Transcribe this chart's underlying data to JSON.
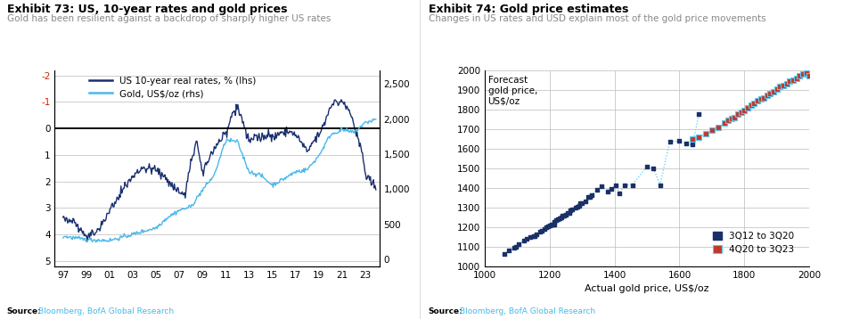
{
  "chart1": {
    "title": "Exhibit 73: US, 10-year rates and gold prices",
    "subtitle": "Gold has been resilient against a backdrop of sharply higher US rates",
    "legend1": "US 10-year real rates, % (lhs)",
    "legend2": "Gold, US$/oz (rhs)",
    "color_rates": "#1a2f6e",
    "color_gold": "#4ab8e8",
    "lhs_ticks": [
      "-2",
      "-1",
      "0",
      "1",
      "2",
      "3",
      "4",
      "5"
    ],
    "lhs_vals": [
      -2,
      -1,
      0,
      1,
      2,
      3,
      4,
      5
    ],
    "rhs_ticks": [
      "2,500",
      "2,000",
      "1,500",
      "1,000",
      "500",
      "0"
    ],
    "rhs_vals": [
      2500,
      2000,
      1500,
      1000,
      500,
      0
    ],
    "x_labels": [
      "97",
      "99",
      "01",
      "03",
      "05",
      "07",
      "09",
      "11",
      "13",
      "15",
      "17",
      "19",
      "21",
      "23"
    ],
    "source_bold": "Source:",
    "source_rest": " Bloomberg, BofA Global Research",
    "source_color": "#4ab8e8"
  },
  "chart2": {
    "title": "Exhibit 74: Gold price estimates",
    "subtitle": "Changes in US rates and USD explain most of the gold price movements",
    "xlabel": "Actual gold price, US$/oz",
    "ylabel_text": "Forecast\ngold price,\nUS$/oz",
    "color_series1": "#1a3068",
    "color_series2_marker": "#c0392b",
    "color_trend": "#5bc8f0",
    "legend1": "3Q12 to 3Q20",
    "legend2": "4Q20 to 3Q23",
    "series1_actual": [
      1060,
      1075,
      1090,
      1095,
      1105,
      1120,
      1130,
      1140,
      1150,
      1155,
      1160,
      1170,
      1175,
      1185,
      1190,
      1195,
      1200,
      1205,
      1210,
      1215,
      1215,
      1220,
      1225,
      1230,
      1235,
      1240,
      1245,
      1250,
      1255,
      1260,
      1265,
      1270,
      1280,
      1285,
      1290,
      1295,
      1300,
      1310,
      1320,
      1325,
      1330,
      1345,
      1360,
      1380,
      1390,
      1405,
      1415,
      1430,
      1455,
      1500,
      1520,
      1540,
      1570,
      1600,
      1620,
      1640,
      1660
    ],
    "series1_forecast": [
      1065,
      1080,
      1095,
      1100,
      1115,
      1130,
      1140,
      1150,
      1155,
      1155,
      1165,
      1175,
      1180,
      1190,
      1200,
      1205,
      1210,
      1215,
      1215,
      1215,
      1225,
      1235,
      1240,
      1245,
      1250,
      1260,
      1260,
      1265,
      1270,
      1270,
      1285,
      1290,
      1300,
      1305,
      1310,
      1320,
      1320,
      1330,
      1355,
      1355,
      1365,
      1390,
      1410,
      1380,
      1395,
      1415,
      1370,
      1415,
      1415,
      1510,
      1500,
      1415,
      1635,
      1640,
      1625,
      1620,
      1775
    ],
    "series2_actual": [
      1640,
      1660,
      1680,
      1700,
      1720,
      1740,
      1750,
      1760,
      1770,
      1780,
      1790,
      1800,
      1810,
      1820,
      1830,
      1840,
      1850,
      1860,
      1870,
      1880,
      1890,
      1900,
      1910,
      1920,
      1930,
      1940,
      1950,
      1960,
      1970,
      1980,
      1990,
      2000
    ],
    "series2_forecast": [
      1650,
      1660,
      1675,
      1695,
      1710,
      1730,
      1745,
      1755,
      1760,
      1775,
      1785,
      1795,
      1810,
      1820,
      1830,
      1845,
      1855,
      1860,
      1870,
      1880,
      1890,
      1905,
      1915,
      1920,
      1930,
      1945,
      1950,
      1960,
      1970,
      1980,
      1985,
      1970
    ],
    "source_bold": "Source:",
    "source_rest": " Bloomberg, BofA Global Research",
    "source_color": "#4ab8e8"
  }
}
